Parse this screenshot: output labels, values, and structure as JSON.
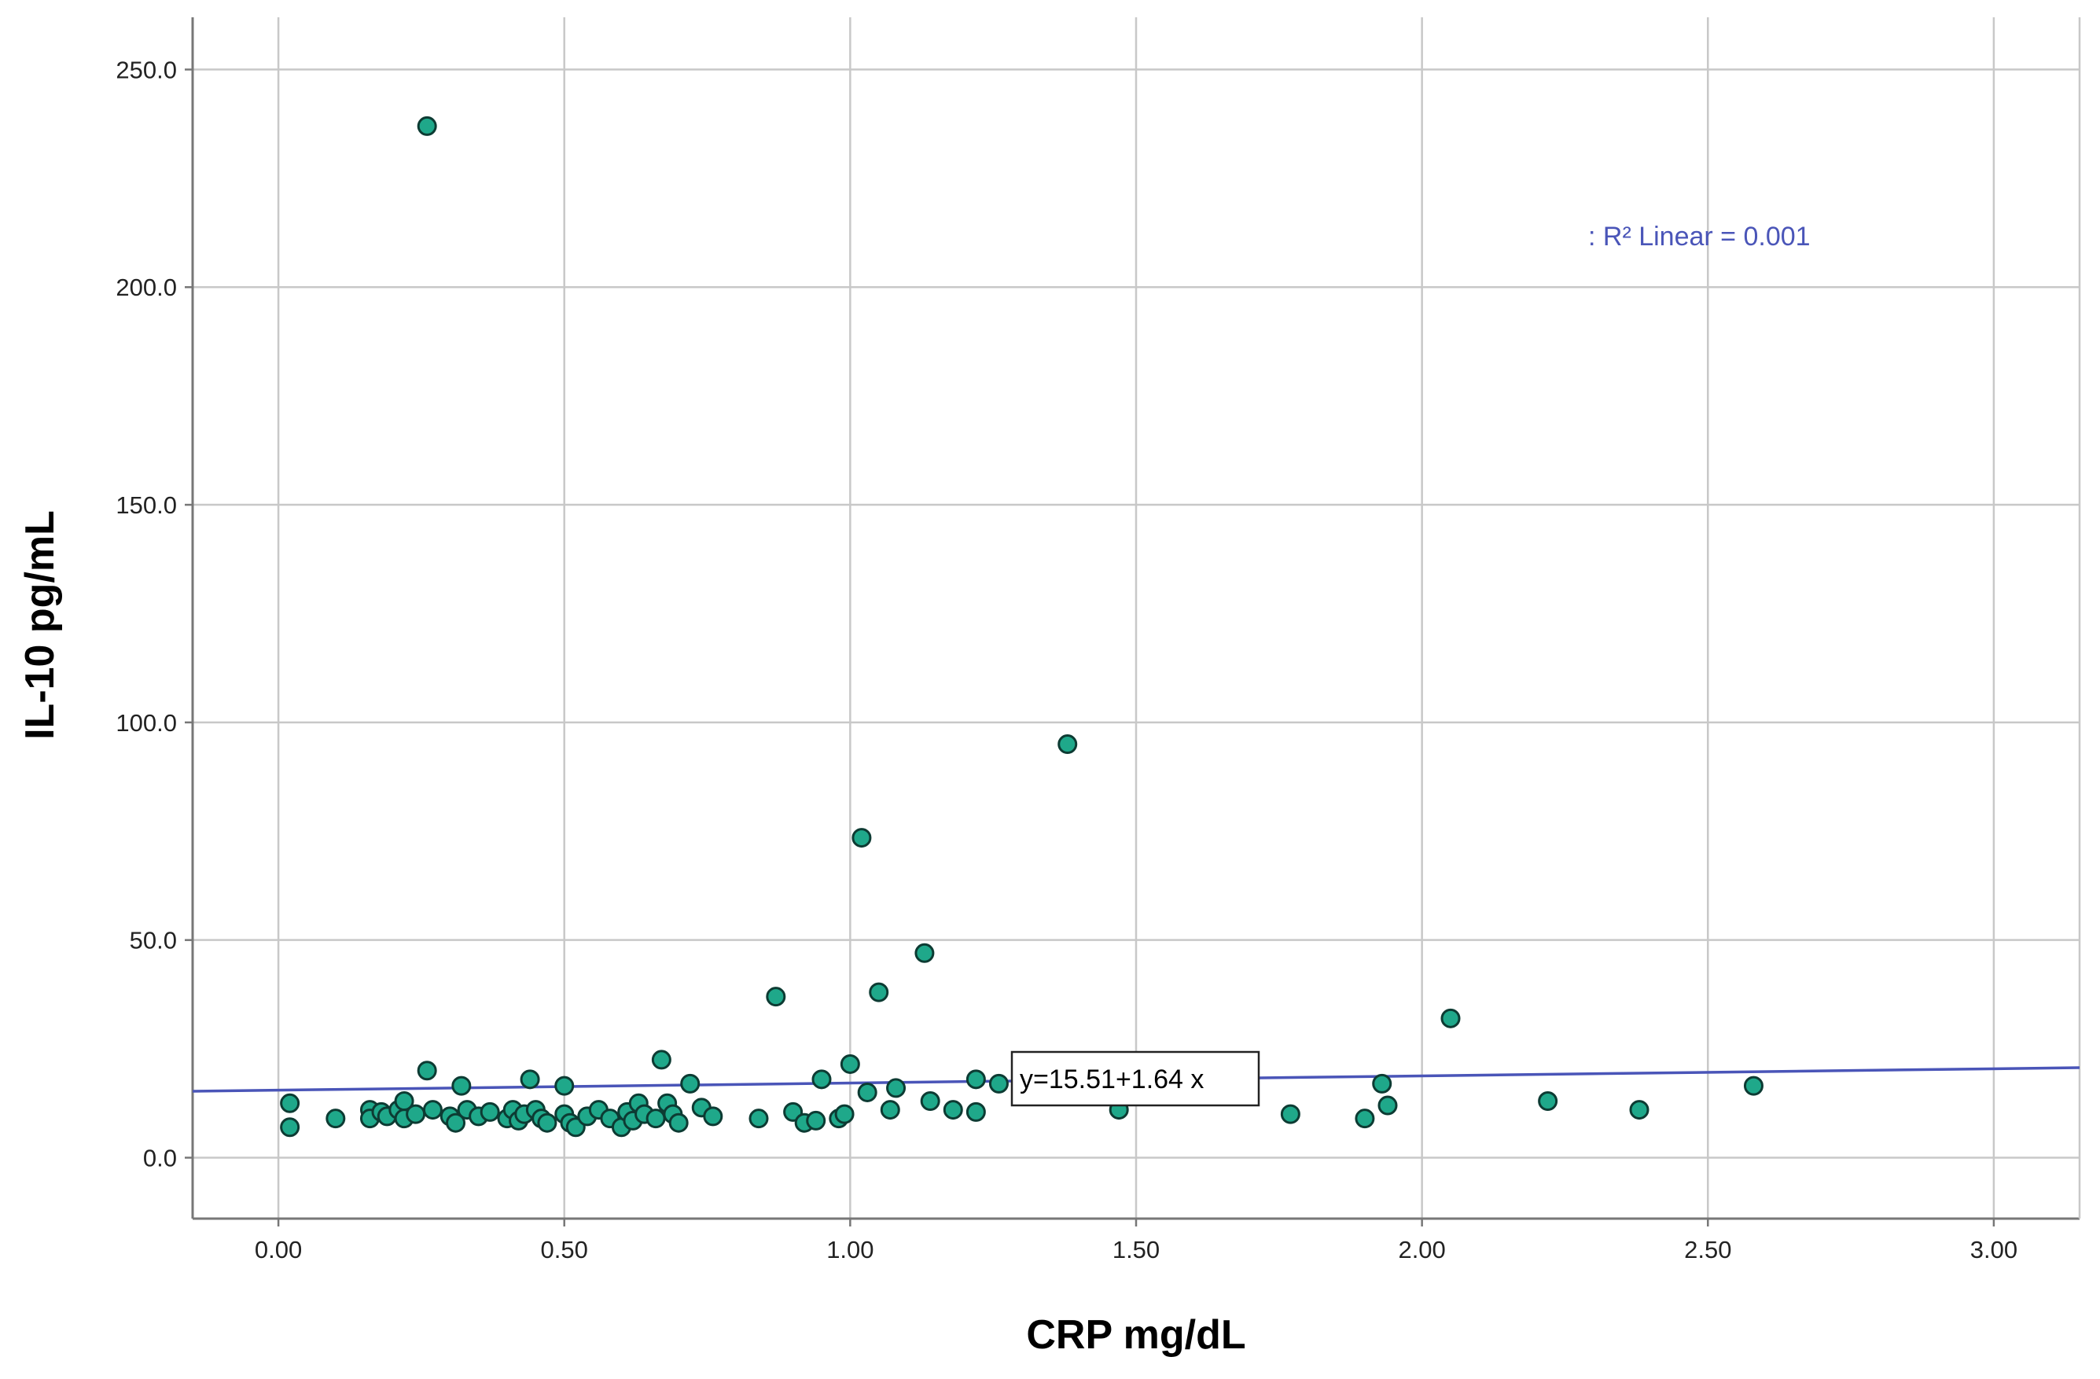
{
  "chart_data": {
    "type": "scatter",
    "title": "",
    "xlabel": "CRP mg/dL",
    "ylabel": "IL-10 pg/mL",
    "xlim": [
      -0.15,
      3.15
    ],
    "ylim": [
      -14,
      262
    ],
    "x_ticks": [
      0.0,
      0.5,
      1.0,
      1.5,
      2.0,
      2.5,
      3.0
    ],
    "x_tick_labels": [
      "0.00",
      "0.50",
      "1.00",
      "1.50",
      "2.00",
      "2.50",
      "3.00"
    ],
    "y_ticks": [
      0,
      50,
      100,
      150,
      200,
      250
    ],
    "y_tick_labels": [
      "0.0",
      "50.0",
      "100.0",
      "150.0",
      "200.0",
      "250.0"
    ],
    "grid": true,
    "colors": {
      "point_fill": "#1fa88a",
      "point_stroke": "#0d3b33",
      "fit_line": "#4a55b8",
      "grid": "#c8c8c8",
      "axis": "#777777"
    },
    "series": [
      {
        "points": [
          [
            0.02,
            12.5
          ],
          [
            0.02,
            7.0
          ],
          [
            0.1,
            9.0
          ],
          [
            0.16,
            11.0
          ],
          [
            0.16,
            9.0
          ],
          [
            0.18,
            10.5
          ],
          [
            0.19,
            9.5
          ],
          [
            0.21,
            11.0
          ],
          [
            0.22,
            13.0
          ],
          [
            0.22,
            9.0
          ],
          [
            0.24,
            10.0
          ],
          [
            0.26,
            237.0
          ],
          [
            0.26,
            20.0
          ],
          [
            0.27,
            11.0
          ],
          [
            0.3,
            9.5
          ],
          [
            0.31,
            8.0
          ],
          [
            0.32,
            16.5
          ],
          [
            0.33,
            11.0
          ],
          [
            0.35,
            9.5
          ],
          [
            0.37,
            10.5
          ],
          [
            0.4,
            9.0
          ],
          [
            0.41,
            11.0
          ],
          [
            0.42,
            8.5
          ],
          [
            0.43,
            10.0
          ],
          [
            0.44,
            18.0
          ],
          [
            0.45,
            11.0
          ],
          [
            0.46,
            9.0
          ],
          [
            0.47,
            8.0
          ],
          [
            0.5,
            16.5
          ],
          [
            0.5,
            10.0
          ],
          [
            0.51,
            8.0
          ],
          [
            0.52,
            7.0
          ],
          [
            0.54,
            9.5
          ],
          [
            0.56,
            11.0
          ],
          [
            0.58,
            9.0
          ],
          [
            0.6,
            7.0
          ],
          [
            0.61,
            10.5
          ],
          [
            0.62,
            8.5
          ],
          [
            0.63,
            12.5
          ],
          [
            0.64,
            10.0
          ],
          [
            0.66,
            9.0
          ],
          [
            0.67,
            22.5
          ],
          [
            0.68,
            12.5
          ],
          [
            0.69,
            10.0
          ],
          [
            0.7,
            8.0
          ],
          [
            0.72,
            17.0
          ],
          [
            0.74,
            11.5
          ],
          [
            0.76,
            9.5
          ],
          [
            0.84,
            9.0
          ],
          [
            0.87,
            37.0
          ],
          [
            0.9,
            10.5
          ],
          [
            0.92,
            8.0
          ],
          [
            0.94,
            8.5
          ],
          [
            0.95,
            18.0
          ],
          [
            0.98,
            9.0
          ],
          [
            0.99,
            10.0
          ],
          [
            1.0,
            21.5
          ],
          [
            1.02,
            73.5
          ],
          [
            1.03,
            15.0
          ],
          [
            1.05,
            38.0
          ],
          [
            1.07,
            11.0
          ],
          [
            1.08,
            16.0
          ],
          [
            1.13,
            47.0
          ],
          [
            1.14,
            13.0
          ],
          [
            1.18,
            11.0
          ],
          [
            1.22,
            18.0
          ],
          [
            1.22,
            10.5
          ],
          [
            1.26,
            17.0
          ],
          [
            1.38,
            95.0
          ],
          [
            1.47,
            11.0
          ],
          [
            1.77,
            10.0
          ],
          [
            1.9,
            9.0
          ],
          [
            1.93,
            17.0
          ],
          [
            1.94,
            12.0
          ],
          [
            2.05,
            32.0
          ],
          [
            2.22,
            13.0
          ],
          [
            2.38,
            11.0
          ],
          [
            2.58,
            16.5
          ]
        ]
      }
    ],
    "fit_line": {
      "intercept": 15.51,
      "slope": 1.64
    },
    "fit_label": "y=15.51+1.64 x",
    "r2_label": ": R² Linear = 0.001"
  }
}
